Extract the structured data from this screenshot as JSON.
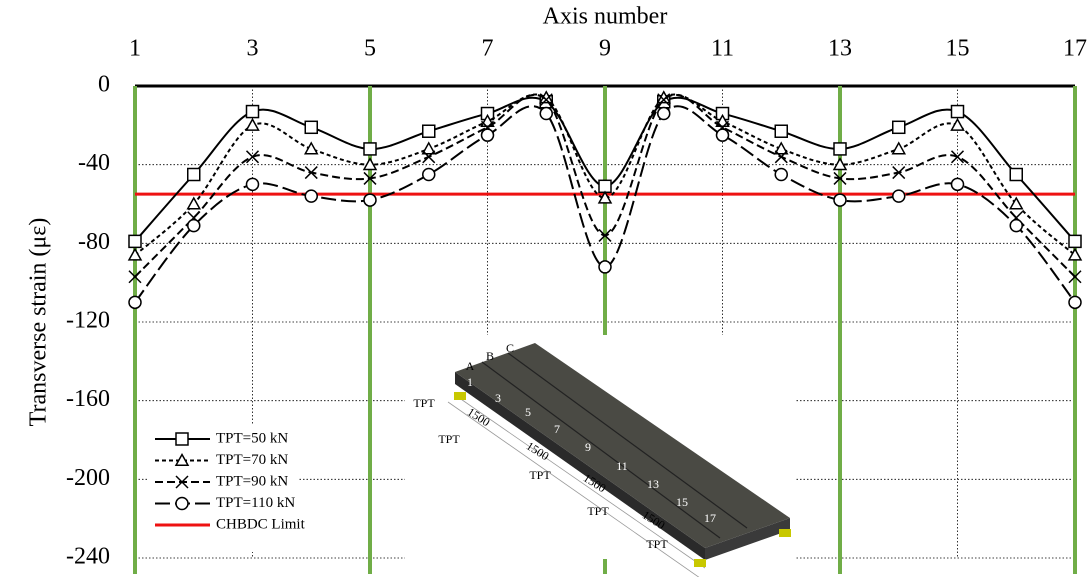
{
  "chart_data": {
    "type": "line",
    "x_label": "Axis number",
    "y_label": "Transverse strain (με)",
    "x": [
      1,
      2,
      3,
      4,
      5,
      6,
      7,
      8,
      9,
      10,
      11,
      12,
      13,
      14,
      15,
      16,
      17
    ],
    "xlim": [
      1,
      17
    ],
    "xticks": [
      1,
      3,
      5,
      7,
      9,
      11,
      13,
      15,
      17
    ],
    "ylim": [
      -240,
      0
    ],
    "yticks": [
      -240,
      -200,
      -160,
      -120,
      -80,
      -40,
      0
    ],
    "grid": true,
    "series": [
      {
        "name": "TPT=50 kN",
        "color": "#000000",
        "marker": "square",
        "dash": "solid",
        "values": [
          -79,
          -45,
          -13,
          -21,
          -32,
          -23,
          -14,
          -8,
          -51,
          -8,
          -14,
          -23,
          -32,
          -21,
          -13,
          -45,
          -79
        ]
      },
      {
        "name": "TPT=70 kN",
        "color": "#000000",
        "marker": "triangle",
        "dash": "short",
        "values": [
          -86,
          -60,
          -20,
          -32,
          -40,
          -32,
          -18,
          -6,
          -57,
          -6,
          -18,
          -32,
          -40,
          -32,
          -20,
          -60,
          -86
        ]
      },
      {
        "name": "TPT=90 kN",
        "color": "#000000",
        "marker": "x",
        "dash": "medium",
        "values": [
          -97,
          -67,
          -36,
          -44,
          -47,
          -36,
          -21,
          -7,
          -76,
          -7,
          -21,
          -36,
          -47,
          -44,
          -36,
          -67,
          -97
        ]
      },
      {
        "name": "TPT=110 kN",
        "color": "#000000",
        "marker": "circle",
        "dash": "long",
        "values": [
          -110,
          -71,
          -50,
          -56,
          -58,
          -45,
          -25,
          -14,
          -92,
          -14,
          -25,
          -45,
          -58,
          -56,
          -50,
          -71,
          -110
        ]
      }
    ],
    "hlines": [
      {
        "name": "CHBDC Limit",
        "y": -55,
        "color": "#ee1111"
      }
    ],
    "vlines": {
      "x": [
        1,
        5,
        9,
        13,
        17
      ],
      "color": "#70ad47"
    },
    "inset": {
      "labels": [
        "A",
        "B",
        "C",
        "1",
        "3",
        "5",
        "7",
        "9",
        "11",
        "13",
        "15",
        "17"
      ],
      "supports": [
        "TPT",
        "TPT",
        "TPT",
        "TPT",
        "TPT"
      ],
      "spacings": [
        "1500",
        "1500",
        "1500",
        "1500"
      ]
    }
  }
}
